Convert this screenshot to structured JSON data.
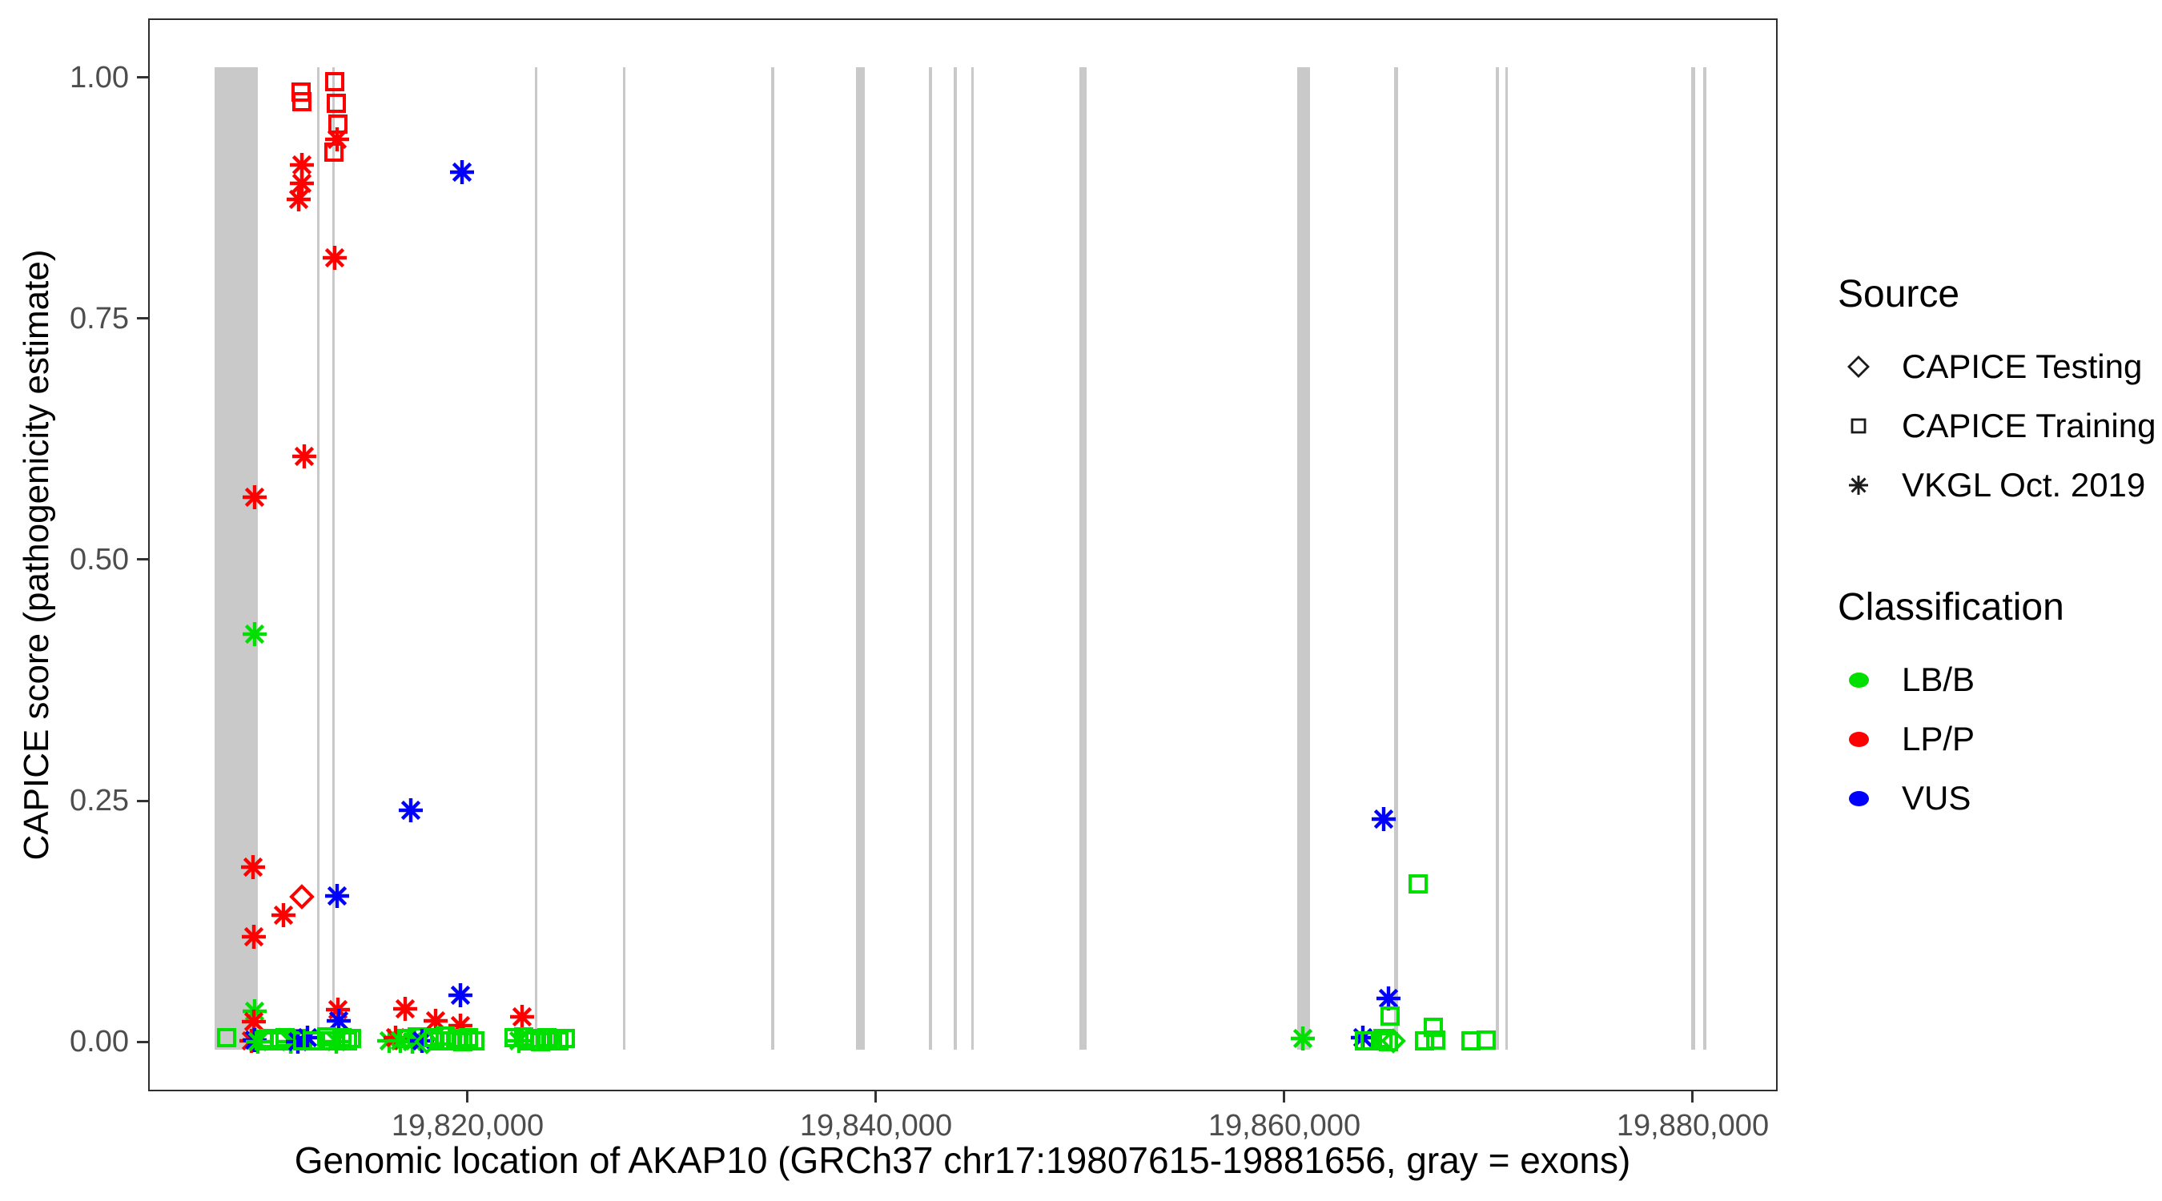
{
  "figure": {
    "y_axis": {
      "title": "CAPICE score (pathogenicity estimate)",
      "ticks": [
        "0.00",
        "0.25",
        "0.50",
        "0.75",
        "1.00"
      ],
      "tick_values": [
        0,
        0.25,
        0.5,
        0.75,
        1.0
      ]
    },
    "x_axis": {
      "title": "Genomic location of AKAP10 (GRCh37 chr17:19807615-19881656, gray = exons)",
      "ticks": [
        "19,820,000",
        "19,840,000",
        "19,860,000",
        "19,880,000"
      ],
      "tick_values": [
        19820000,
        19840000,
        19860000,
        19880000
      ]
    },
    "legend": {
      "source": {
        "title": "Source",
        "items": [
          {
            "label": "CAPICE Testing",
            "shape": "diamond"
          },
          {
            "label": "CAPICE Training",
            "shape": "square"
          },
          {
            "label": "VKGL Oct. 2019",
            "shape": "asterisk"
          }
        ]
      },
      "classification": {
        "title": "Classification",
        "items": [
          {
            "label": "LB/B",
            "color": "#00e000"
          },
          {
            "label": "LP/P",
            "color": "#ff0000"
          },
          {
            "label": "VUS",
            "color": "#0000ff"
          }
        ]
      }
    }
  },
  "chart_data": {
    "type": "scatter",
    "title": "",
    "xlabel": "Genomic location of AKAP10 (GRCh37 chr17:19807615-19881656, gray = exons)",
    "ylabel": "CAPICE score (pathogenicity estimate)",
    "xlim": [
      19804353,
      19884157
    ],
    "ylim": [
      -0.0514,
      1.0613
    ],
    "grid": false,
    "legend_position": "right",
    "gene_region": {
      "chrom": "chr17",
      "start": 19807615,
      "end": 19881656,
      "assembly": "GRCh37",
      "gene": "AKAP10"
    },
    "exon_color": "#c9c9c9",
    "exon_band": [
      -0.0083,
      1.0105
    ],
    "exons_bp": [
      [
        19807615,
        19809730
      ],
      [
        19812630,
        19812750
      ],
      [
        19813370,
        19813490
      ],
      [
        19823290,
        19823410
      ],
      [
        19827610,
        19827725
      ],
      [
        19834860,
        19835020
      ],
      [
        19839020,
        19839450
      ],
      [
        19842590,
        19842745
      ],
      [
        19843800,
        19843960
      ],
      [
        19844670,
        19844785
      ],
      [
        19849960,
        19850315
      ],
      [
        19860630,
        19861255
      ],
      [
        19865370,
        19865570
      ],
      [
        19870350,
        19870510
      ],
      [
        19870825,
        19870940
      ],
      [
        19879920,
        19880120
      ],
      [
        19880510,
        19880670
      ]
    ],
    "classification_colors": {
      "LB/B": "#00e000",
      "LP/P": "#ff0000",
      "VUS": "#0000ff"
    },
    "source_shapes": {
      "CAPICE Testing": "diamond",
      "CAPICE Training": "square",
      "VKGL Oct. 2019": "asterisk"
    },
    "points": [
      {
        "bp": 19811843,
        "score": 0.985,
        "cls": "LP/P",
        "src": "CAPICE Training"
      },
      {
        "bp": 19811882,
        "score": 0.975,
        "cls": "LP/P",
        "src": "CAPICE Training"
      },
      {
        "bp": 19813490,
        "score": 0.996,
        "cls": "LP/P",
        "src": "CAPICE Training"
      },
      {
        "bp": 19813569,
        "score": 0.973,
        "cls": "LP/P",
        "src": "CAPICE Training"
      },
      {
        "bp": 19813647,
        "score": 0.952,
        "cls": "LP/P",
        "src": "CAPICE Training"
      },
      {
        "bp": 19813608,
        "score": 0.936,
        "cls": "LP/P",
        "src": "VKGL Oct. 2019"
      },
      {
        "bp": 19813451,
        "score": 0.923,
        "cls": "LP/P",
        "src": "CAPICE Training"
      },
      {
        "bp": 19811882,
        "score": 0.909,
        "cls": "LP/P",
        "src": "VKGL Oct. 2019"
      },
      {
        "bp": 19811882,
        "score": 0.89,
        "cls": "LP/P",
        "src": "VKGL Oct. 2019"
      },
      {
        "bp": 19811725,
        "score": 0.874,
        "cls": "LP/P",
        "src": "VKGL Oct. 2019"
      },
      {
        "bp": 19813490,
        "score": 0.813,
        "cls": "LP/P",
        "src": "VKGL Oct. 2019"
      },
      {
        "bp": 19819725,
        "score": 0.902,
        "cls": "VUS",
        "src": "VKGL Oct. 2019"
      },
      {
        "bp": 19812000,
        "score": 0.607,
        "cls": "LP/P",
        "src": "VKGL Oct. 2019"
      },
      {
        "bp": 19809569,
        "score": 0.565,
        "cls": "LP/P",
        "src": "VKGL Oct. 2019"
      },
      {
        "bp": 19809569,
        "score": 0.423,
        "cls": "LB/B",
        "src": "VKGL Oct. 2019"
      },
      {
        "bp": 19809490,
        "score": 0.181,
        "cls": "LP/P",
        "src": "VKGL Oct. 2019"
      },
      {
        "bp": 19811882,
        "score": 0.15,
        "cls": "LP/P",
        "src": "CAPICE Testing"
      },
      {
        "bp": 19810980,
        "score": 0.131,
        "cls": "LP/P",
        "src": "VKGL Oct. 2019"
      },
      {
        "bp": 19809529,
        "score": 0.109,
        "cls": "LP/P",
        "src": "VKGL Oct. 2019"
      },
      {
        "bp": 19813608,
        "score": 0.151,
        "cls": "VUS",
        "src": "VKGL Oct. 2019"
      },
      {
        "bp": 19817216,
        "score": 0.24,
        "cls": "VUS",
        "src": "VKGL Oct. 2019"
      },
      {
        "bp": 19809569,
        "score": 0.032,
        "cls": "LB/B",
        "src": "VKGL Oct. 2019"
      },
      {
        "bp": 19809529,
        "score": 0.021,
        "cls": "LP/P",
        "src": "VKGL Oct. 2019"
      },
      {
        "bp": 19813647,
        "score": 0.033,
        "cls": "LP/P",
        "src": "VKGL Oct. 2019"
      },
      {
        "bp": 19813686,
        "score": 0.022,
        "cls": "VUS",
        "src": "VKGL Oct. 2019"
      },
      {
        "bp": 19816941,
        "score": 0.034,
        "cls": "LP/P",
        "src": "VKGL Oct. 2019"
      },
      {
        "bp": 19818431,
        "score": 0.022,
        "cls": "LP/P",
        "src": "VKGL Oct. 2019"
      },
      {
        "bp": 19819647,
        "score": 0.048,
        "cls": "VUS",
        "src": "VKGL Oct. 2019"
      },
      {
        "bp": 19819647,
        "score": 0.017,
        "cls": "LP/P",
        "src": "VKGL Oct. 2019"
      },
      {
        "bp": 19822667,
        "score": 0.026,
        "cls": "LP/P",
        "src": "VKGL Oct. 2019"
      },
      {
        "bp": 19808196,
        "score": 0.004,
        "cls": "LB/B",
        "src": "CAPICE Training"
      },
      {
        "bp": 19809412,
        "score": 0.001,
        "cls": "LP/P",
        "src": "VKGL Oct. 2019"
      },
      {
        "bp": 19809569,
        "score": 0.002,
        "cls": "VUS",
        "src": "VKGL Oct. 2019"
      },
      {
        "bp": 19809725,
        "score": 0.0,
        "cls": "LB/B",
        "src": "VKGL Oct. 2019"
      },
      {
        "bp": 19810039,
        "score": 0.001,
        "cls": "LB/B",
        "src": "CAPICE Training"
      },
      {
        "bp": 19810275,
        "score": 0.003,
        "cls": "LB/B",
        "src": "CAPICE Training"
      },
      {
        "bp": 19810784,
        "score": 0.001,
        "cls": "LB/B",
        "src": "CAPICE Training"
      },
      {
        "bp": 19811059,
        "score": 0.004,
        "cls": "LB/B",
        "src": "CAPICE Training"
      },
      {
        "bp": 19811333,
        "score": 0.0,
        "cls": "LB/B",
        "src": "VKGL Oct. 2019"
      },
      {
        "bp": 19811608,
        "score": 0.003,
        "cls": "LB/B",
        "src": "CAPICE Training"
      },
      {
        "bp": 19811686,
        "score": 0.0,
        "cls": "VUS",
        "src": "VKGL Oct. 2019"
      },
      {
        "bp": 19811922,
        "score": 0.001,
        "cls": "LB/B",
        "src": "CAPICE Training"
      },
      {
        "bp": 19812157,
        "score": 0.004,
        "cls": "VUS",
        "src": "VKGL Oct. 2019"
      },
      {
        "bp": 19812392,
        "score": 0.001,
        "cls": "LB/B",
        "src": "CAPICE Training"
      },
      {
        "bp": 19813098,
        "score": 0.005,
        "cls": "LB/B",
        "src": "CAPICE Training"
      },
      {
        "bp": 19813333,
        "score": 0.001,
        "cls": "LB/B",
        "src": "CAPICE Training"
      },
      {
        "bp": 19813569,
        "score": 0.0,
        "cls": "LB/B",
        "src": "VKGL Oct. 2019"
      },
      {
        "bp": 19813843,
        "score": 0.004,
        "cls": "LB/B",
        "src": "CAPICE Training"
      },
      {
        "bp": 19814118,
        "score": 0.001,
        "cls": "LB/B",
        "src": "CAPICE Training"
      },
      {
        "bp": 19814314,
        "score": 0.003,
        "cls": "LB/B",
        "src": "CAPICE Training"
      },
      {
        "bp": 19816157,
        "score": 0.001,
        "cls": "LB/B",
        "src": "VKGL Oct. 2019"
      },
      {
        "bp": 19816470,
        "score": 0.004,
        "cls": "LP/P",
        "src": "VKGL Oct. 2019"
      },
      {
        "bp": 19816706,
        "score": 0.001,
        "cls": "LB/B",
        "src": "VKGL Oct. 2019"
      },
      {
        "bp": 19817020,
        "score": 0.003,
        "cls": "LB/B",
        "src": "CAPICE Training"
      },
      {
        "bp": 19817294,
        "score": 0.0,
        "cls": "LB/B",
        "src": "VKGL Oct. 2019"
      },
      {
        "bp": 19817529,
        "score": 0.005,
        "cls": "LB/B",
        "src": "CAPICE Training"
      },
      {
        "bp": 19817765,
        "score": 0.001,
        "cls": "VUS",
        "src": "VKGL Oct. 2019"
      },
      {
        "bp": 19818000,
        "score": 0.0,
        "cls": "LB/B",
        "src": "CAPICE Testing"
      },
      {
        "bp": 19818314,
        "score": 0.004,
        "cls": "LB/B",
        "src": "CAPICE Training"
      },
      {
        "bp": 19818627,
        "score": 0.001,
        "cls": "LB/B",
        "src": "CAPICE Training"
      },
      {
        "bp": 19818902,
        "score": 0.006,
        "cls": "LB/B",
        "src": "CAPICE Training"
      },
      {
        "bp": 19819176,
        "score": 0.001,
        "cls": "LB/B",
        "src": "CAPICE Training"
      },
      {
        "bp": 19819490,
        "score": 0.003,
        "cls": "LB/B",
        "src": "CAPICE Training"
      },
      {
        "bp": 19819765,
        "score": 0.0,
        "cls": "LB/B",
        "src": "CAPICE Training"
      },
      {
        "bp": 19820039,
        "score": 0.004,
        "cls": "LB/B",
        "src": "CAPICE Training"
      },
      {
        "bp": 19820353,
        "score": 0.001,
        "cls": "LB/B",
        "src": "CAPICE Training"
      },
      {
        "bp": 19822275,
        "score": 0.004,
        "cls": "LB/B",
        "src": "CAPICE Training"
      },
      {
        "bp": 19822510,
        "score": 0.001,
        "cls": "LB/B",
        "src": "VKGL Oct. 2019"
      },
      {
        "bp": 19822745,
        "score": 0.005,
        "cls": "LB/B",
        "src": "CAPICE Training"
      },
      {
        "bp": 19823020,
        "score": 0.001,
        "cls": "LB/B",
        "src": "CAPICE Training"
      },
      {
        "bp": 19823294,
        "score": 0.003,
        "cls": "LB/B",
        "src": "CAPICE Training"
      },
      {
        "bp": 19823569,
        "score": 0.0,
        "cls": "LB/B",
        "src": "CAPICE Training"
      },
      {
        "bp": 19823882,
        "score": 0.004,
        "cls": "LB/B",
        "src": "CAPICE Training"
      },
      {
        "bp": 19824157,
        "score": 0.001,
        "cls": "LB/B",
        "src": "CAPICE Training"
      },
      {
        "bp": 19824471,
        "score": 0.001,
        "cls": "LB/B",
        "src": "CAPICE Training"
      },
      {
        "bp": 19824784,
        "score": 0.003,
        "cls": "LB/B",
        "src": "CAPICE Training"
      },
      {
        "bp": 19860902,
        "score": 0.003,
        "cls": "LB/B",
        "src": "VKGL Oct. 2019"
      },
      {
        "bp": 19864863,
        "score": 0.231,
        "cls": "VUS",
        "src": "VKGL Oct. 2019"
      },
      {
        "bp": 19866549,
        "score": 0.164,
        "cls": "LB/B",
        "src": "CAPICE Training"
      },
      {
        "bp": 19865098,
        "score": 0.045,
        "cls": "VUS",
        "src": "VKGL Oct. 2019"
      },
      {
        "bp": 19865176,
        "score": 0.027,
        "cls": "LB/B",
        "src": "CAPICE Training"
      },
      {
        "bp": 19863843,
        "score": 0.004,
        "cls": "VUS",
        "src": "VKGL Oct. 2019"
      },
      {
        "bp": 19863922,
        "score": 0.001,
        "cls": "LB/B",
        "src": "CAPICE Training"
      },
      {
        "bp": 19864196,
        "score": 0.001,
        "cls": "LB/B",
        "src": "CAPICE Training"
      },
      {
        "bp": 19864824,
        "score": 0.003,
        "cls": "LB/B",
        "src": "CAPICE Training"
      },
      {
        "bp": 19865098,
        "score": 0.0,
        "cls": "LB/B",
        "src": "CAPICE Training"
      },
      {
        "bp": 19865333,
        "score": 0.001,
        "cls": "LB/B",
        "src": "CAPICE Testing"
      },
      {
        "bp": 19867294,
        "score": 0.015,
        "cls": "LB/B",
        "src": "CAPICE Training"
      },
      {
        "bp": 19866863,
        "score": 0.001,
        "cls": "LB/B",
        "src": "CAPICE Training"
      },
      {
        "bp": 19867412,
        "score": 0.002,
        "cls": "LB/B",
        "src": "CAPICE Training"
      },
      {
        "bp": 19869137,
        "score": 0.001,
        "cls": "LB/B",
        "src": "CAPICE Training"
      },
      {
        "bp": 19869882,
        "score": 0.002,
        "cls": "LB/B",
        "src": "CAPICE Training"
      }
    ]
  }
}
